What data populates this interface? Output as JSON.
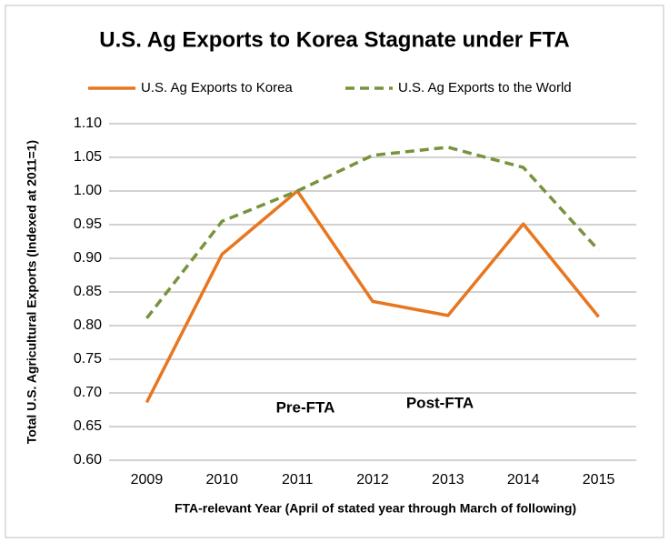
{
  "chart_data": {
    "type": "line",
    "title": "U.S. Ag Exports to Korea Stagnate under FTA",
    "x_label": "FTA-relevant Year (April of stated year through March of following)",
    "y_label": "Total U.S. Agricultural Exports (Indexed at 2011=1)",
    "annotations": [
      "Pre-FTA",
      "Post-FTA"
    ],
    "categories": [
      "2009",
      "2010",
      "2011",
      "2012",
      "2013",
      "2014",
      "2015"
    ],
    "series": [
      {
        "name": "U.S. Ag Exports to Korea",
        "color": "#e8761f",
        "dashed": false,
        "values": [
          0.686,
          0.906,
          1.0,
          0.836,
          0.815,
          0.951,
          0.813
        ]
      },
      {
        "name": "U.S. Ag Exports to the World",
        "color": "#77933c",
        "dashed": true,
        "values": [
          0.811,
          0.955,
          1.0,
          1.053,
          1.065,
          1.035,
          0.912
        ]
      }
    ],
    "ylim": [
      0.6,
      1.1
    ],
    "yticks": [
      {
        "value": 0.6,
        "label": "0.60"
      },
      {
        "value": 0.65,
        "label": "0.65"
      },
      {
        "value": 0.7,
        "label": "0.70"
      },
      {
        "value": 0.75,
        "label": "0.75"
      },
      {
        "value": 0.8,
        "label": "0.80"
      },
      {
        "value": 0.85,
        "label": "0.85"
      },
      {
        "value": 0.9,
        "label": "0.90"
      },
      {
        "value": 0.95,
        "label": "0.95"
      },
      {
        "value": 1.0,
        "label": "1.00"
      },
      {
        "value": 1.05,
        "label": "1.05"
      },
      {
        "value": 1.1,
        "label": "1.10"
      }
    ],
    "grid": true,
    "legend": "top"
  }
}
